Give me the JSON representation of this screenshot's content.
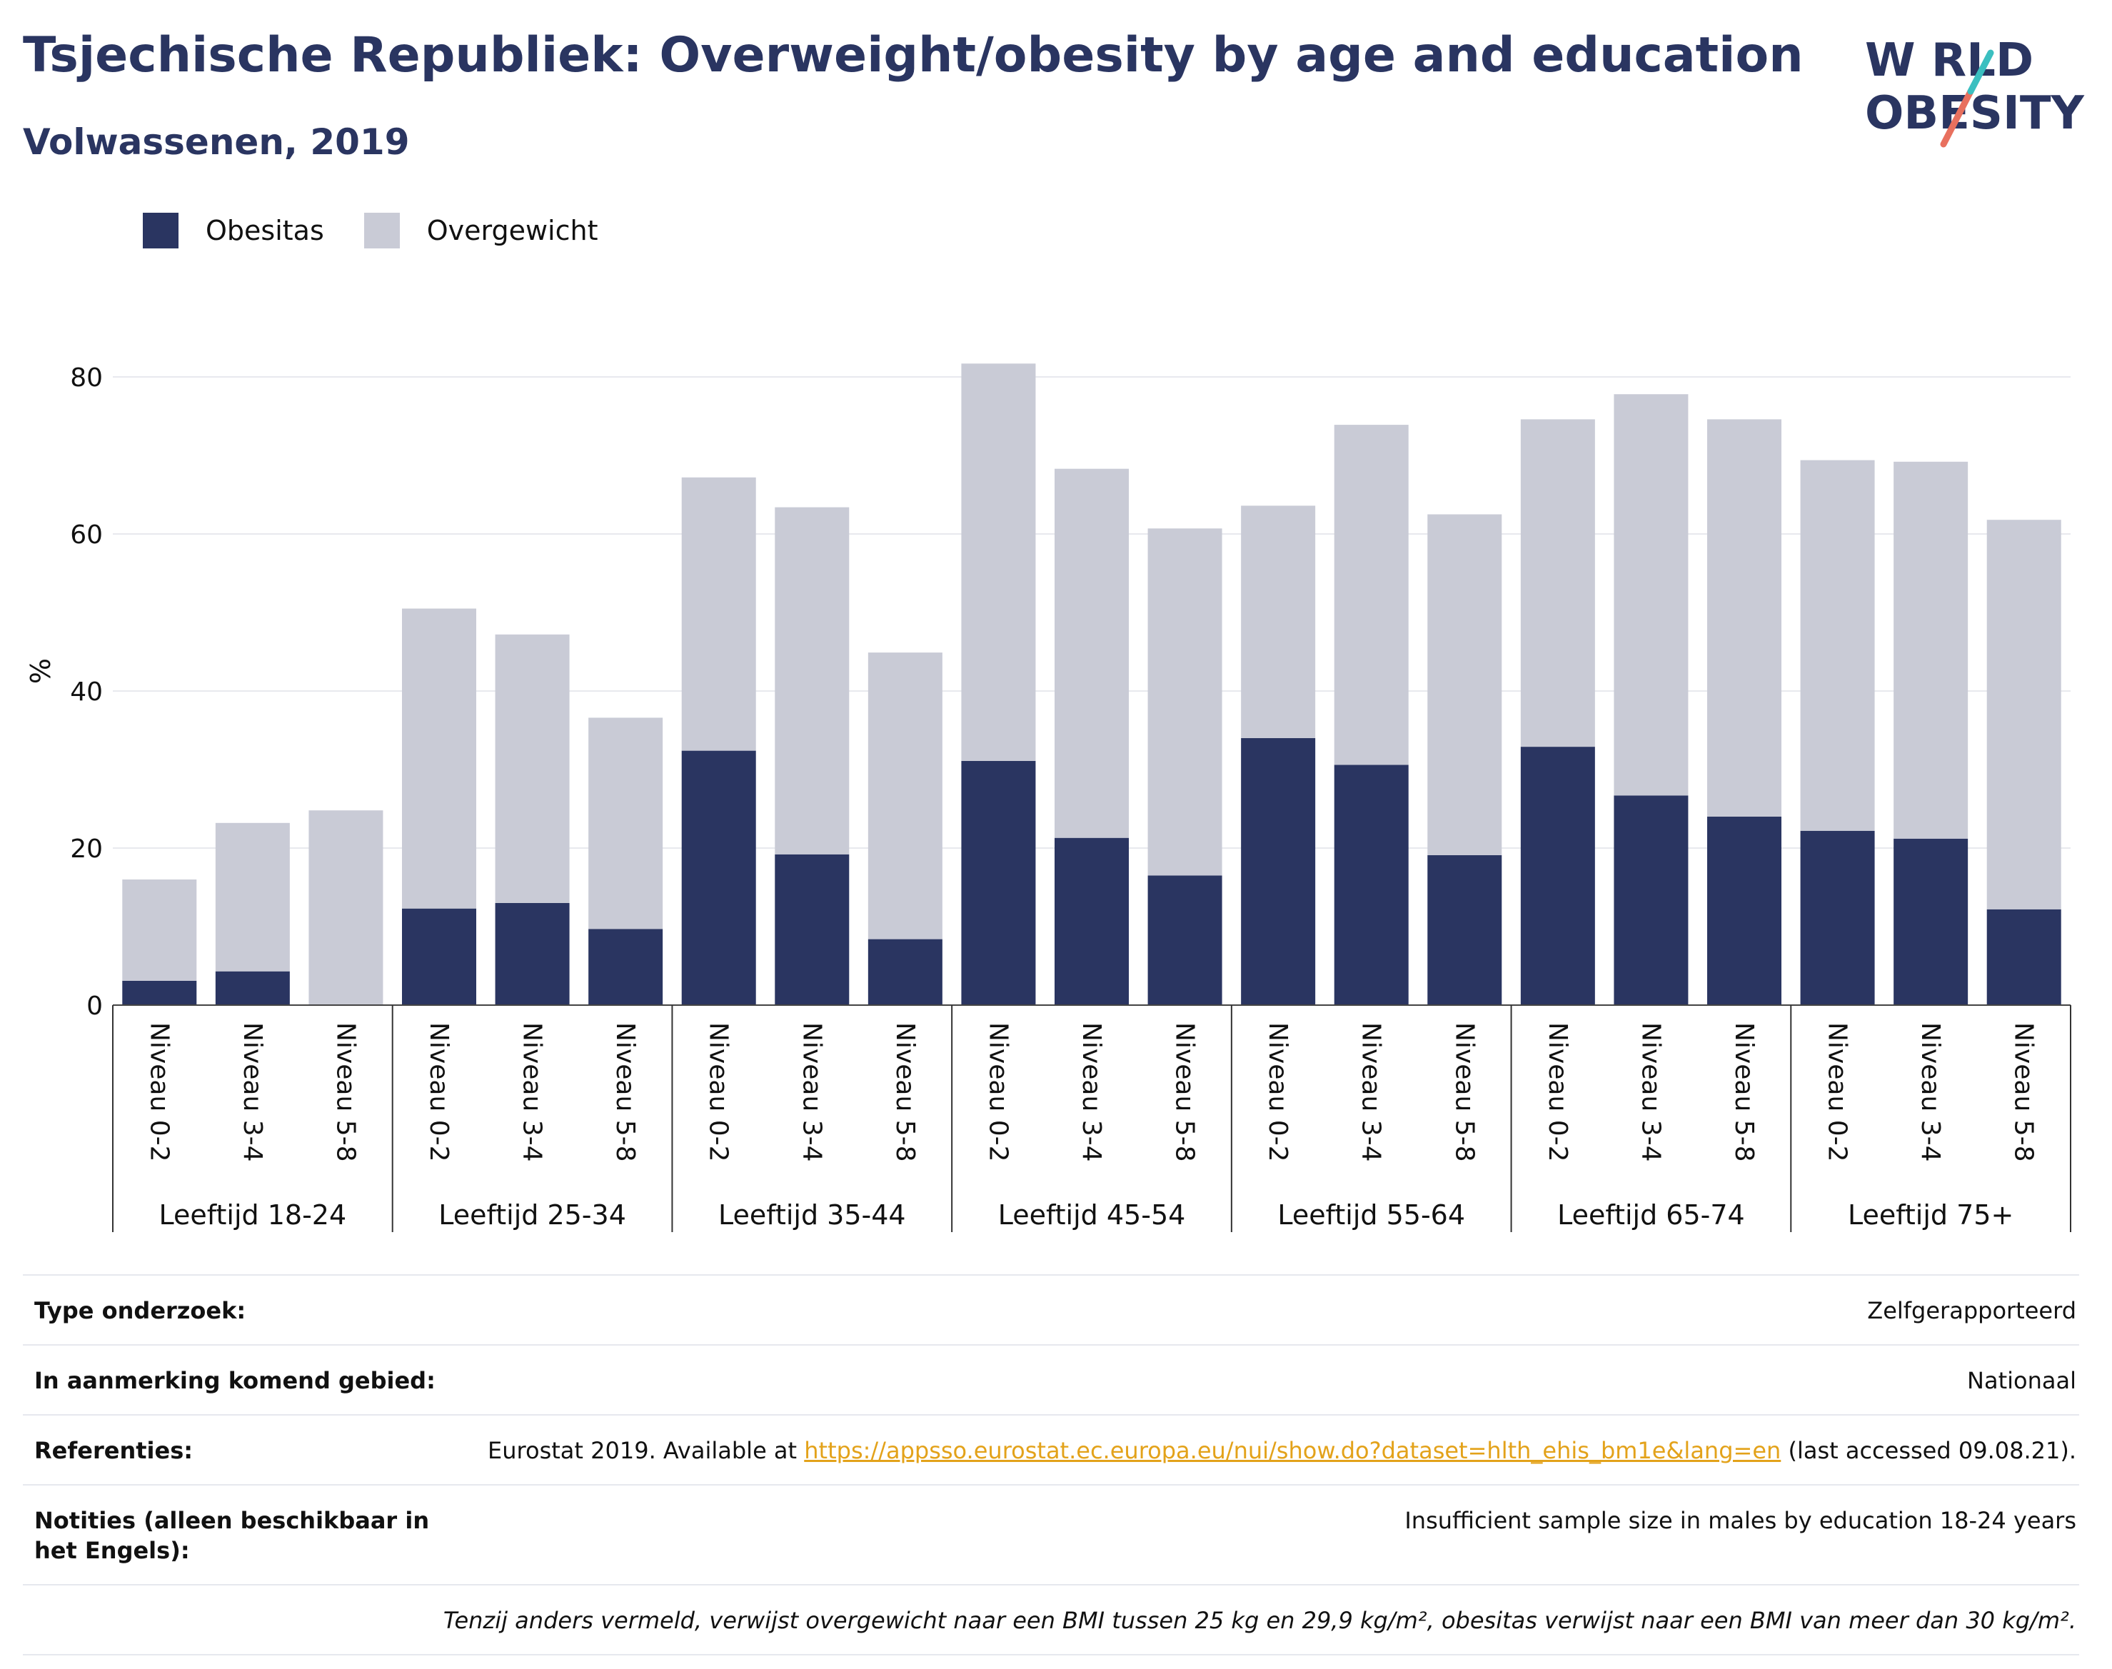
{
  "header": {
    "title": "Tsjechische Republiek: Overweight/obesity by age and education",
    "subtitle": "Volwassenen, 2019"
  },
  "logo": {
    "line1": "W RLD",
    "line2": "OBESITY",
    "colors": {
      "text": "#2a3561",
      "slash_teal": "#3bbfc0",
      "slash_coral": "#e8705e"
    }
  },
  "chart_data": {
    "type": "bar",
    "stacked": true,
    "ylabel": "%",
    "ylim": [
      0,
      85
    ],
    "yticks": [
      0,
      20,
      40,
      60,
      80
    ],
    "grid": true,
    "legend_position": "top-left",
    "groups": [
      "Leeftijd 18-24",
      "Leeftijd 25-34",
      "Leeftijd 35-44",
      "Leeftijd 45-54",
      "Leeftijd 55-64",
      "Leeftijd 65-74",
      "Leeftijd 75+"
    ],
    "levels": [
      "Niveau 0-2",
      "Niveau 3-4",
      "Niveau 5-8"
    ],
    "series": [
      {
        "name": "Obesitas",
        "color": "#2a3561",
        "values": [
          3.1,
          4.3,
          0,
          12.3,
          13.0,
          9.7,
          32.4,
          19.2,
          8.4,
          31.1,
          21.3,
          16.5,
          34.0,
          30.6,
          19.1,
          32.9,
          26.7,
          24.0,
          22.2,
          21.2,
          12.2
        ]
      },
      {
        "name": "Overgewicht",
        "color": "#c9cbd6",
        "values": [
          12.9,
          18.9,
          24.8,
          38.2,
          34.2,
          26.9,
          34.8,
          44.2,
          36.5,
          50.6,
          47.0,
          44.2,
          29.6,
          43.3,
          43.4,
          41.7,
          51.1,
          50.6,
          47.2,
          48.0,
          49.6
        ]
      }
    ]
  },
  "info": {
    "rows": [
      {
        "label": "Type onderzoek:",
        "value": "Zelfgerapporteerd"
      },
      {
        "label": "In aanmerking komend gebied:",
        "value": "Nationaal"
      },
      {
        "label": "Referenties:",
        "value_pre": "Eurostat 2019. Available at ",
        "link": "https://appsso.eurostat.ec.europa.eu/nui/show.do?dataset=hlth_ehis_bm1e&lang=en",
        "value_post": " (last accessed 09.08.21)."
      },
      {
        "label": "Notities (alleen beschikbaar in het Engels):",
        "value": "Insufficient sample size in males by education 18-24 years"
      }
    ],
    "footnote": "Tenzij anders vermeld, verwijst overgewicht naar een BMI tussen 25 kg en 29,9 kg/m², obesitas verwijst naar een BMI van meer dan 30 kg/m²."
  }
}
